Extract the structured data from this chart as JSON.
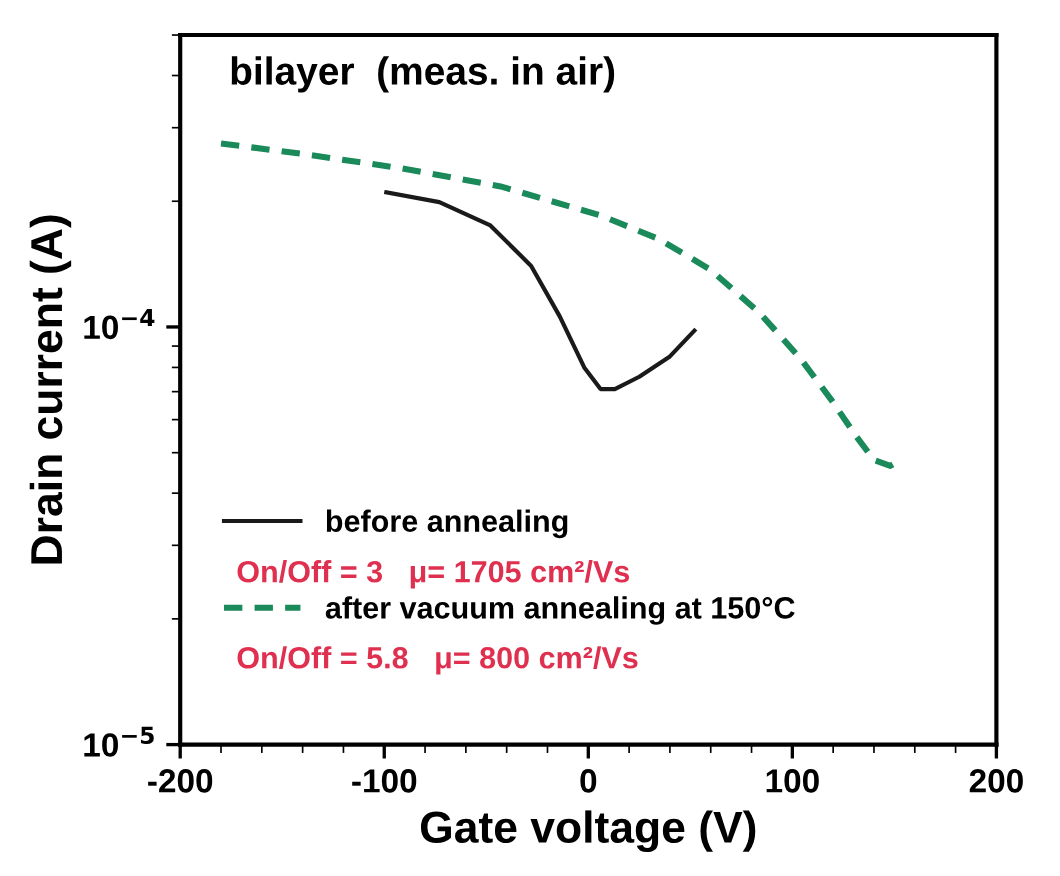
{
  "chart_data": {
    "type": "line",
    "title": "bilayer  (meas. in air)",
    "xlabel": "Gate voltage (V)",
    "ylabel": "Drain current (A)",
    "series": [
      {
        "name": "before annealing",
        "color": "#1a1a1a",
        "line_style": "solid",
        "x": [
          -99,
          -73,
          -48,
          -28,
          -14,
          -2,
          6,
          13,
          25,
          40,
          52
        ],
        "values": [
          0.00021,
          0.000199,
          0.000175,
          0.00014,
          0.000106,
          8e-05,
          7.1e-05,
          7.1e-05,
          7.6e-05,
          8.5e-05,
          9.8e-05
        ]
      },
      {
        "name": "after vacuum annealing at 150°C",
        "color": "#1a8a5a",
        "line_style": "dashed",
        "x": [
          -180,
          -141,
          -92,
          -43,
          6,
          35,
          60,
          84,
          104,
          119,
          131,
          140,
          148,
          153
        ],
        "values": [
          0.000275,
          0.00026,
          0.00024,
          0.000217,
          0.000185,
          0.000162,
          0.000137,
          0.000108,
          8.4e-05,
          6.7e-05,
          5.5e-05,
          4.8e-05,
          4.65e-05,
          4.8e-05
        ]
      }
    ],
    "annotations": [
      "On/Off = 3   μ= 1705 cm²/Vs",
      "On/Off = 5.8   μ= 800 cm²/Vs"
    ],
    "log": "y",
    "xlim": [
      -200,
      200
    ],
    "xticks": [
      -200,
      -100,
      0,
      100,
      200
    ],
    "ylim": [
      1e-05,
      0.0005
    ],
    "yticks": [
      {
        "value": 0.0001,
        "label": "10$^{−4}$"
      },
      {
        "value": 1e-05,
        "label": "10$^{−5}$"
      }
    ],
    "legend": "bottom left",
    "grid": false
  }
}
